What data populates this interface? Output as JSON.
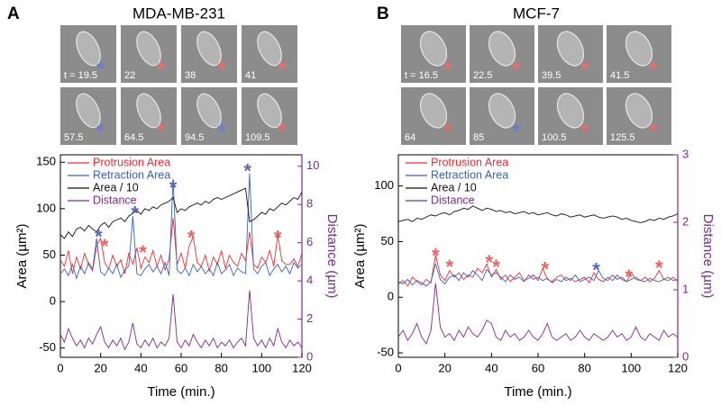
{
  "chart_data": [
    {
      "type": "line",
      "panel_label": "A",
      "title": "MDA-MB-231",
      "thumbnails": [
        {
          "label": "t = 19.5",
          "star": {
            "text": "*",
            "color": "#6c7ad0"
          }
        },
        {
          "label": "22",
          "star": {
            "text": "*",
            "color": "#f06a6a"
          }
        },
        {
          "label": "38",
          "star": {
            "text": "*",
            "color": "#f06a6a"
          }
        },
        {
          "label": "41",
          "star": {
            "text": "*",
            "color": "#f06a6a"
          }
        },
        {
          "label": "57.5",
          "star": {
            "text": "*",
            "color": "#6c7ad0"
          }
        },
        {
          "label": "64.5",
          "star": {
            "text": "*",
            "color": "#f06a6a"
          }
        },
        {
          "label": "94.5",
          "star": {
            "text": "*",
            "color": "#6c7ad0"
          }
        },
        {
          "label": "109.5",
          "star": {
            "text": "*",
            "color": "#f06a6a"
          }
        }
      ],
      "x": [
        0,
        2,
        4,
        6,
        8,
        10,
        12,
        14,
        16,
        18,
        20,
        22,
        24,
        26,
        28,
        30,
        32,
        34,
        36,
        38,
        40,
        42,
        44,
        46,
        48,
        50,
        52,
        54,
        56,
        58,
        60,
        62,
        64,
        66,
        68,
        70,
        72,
        74,
        76,
        78,
        80,
        82,
        84,
        86,
        88,
        90,
        92,
        94,
        96,
        98,
        100,
        102,
        104,
        106,
        108,
        110,
        112,
        114,
        116,
        118,
        120
      ],
      "series": [
        {
          "name": "Protrusion Area",
          "color": "#e8303a",
          "axis": "y",
          "values": [
            45,
            38,
            55,
            30,
            48,
            35,
            52,
            40,
            33,
            60,
            68,
            42,
            35,
            50,
            38,
            45,
            30,
            52,
            40,
            58,
            36,
            48,
            42,
            55,
            38,
            50,
            34,
            46,
            90,
            40,
            52,
            36,
            60,
            70,
            42,
            38,
            50,
            33,
            48,
            40,
            55,
            36,
            50,
            42,
            38,
            52,
            44,
            75,
            40,
            36,
            48,
            42,
            55,
            38,
            72,
            44,
            40,
            40,
            46,
            38,
            52
          ]
        },
        {
          "name": "Retraction Area",
          "color": "#3a62b4",
          "axis": "y",
          "values": [
            30,
            35,
            28,
            40,
            25,
            38,
            30,
            42,
            35,
            68,
            32,
            28,
            36,
            30,
            40,
            26,
            34,
            38,
            92,
            30,
            28,
            35,
            40,
            32,
            38,
            30,
            42,
            28,
            132,
            34,
            30,
            36,
            28,
            40,
            32,
            38,
            30,
            35,
            28,
            42,
            30,
            34,
            40,
            28,
            36,
            32,
            30,
            138,
            35,
            30,
            38,
            42,
            28,
            35,
            40,
            32,
            38,
            30,
            42,
            36,
            40
          ]
        },
        {
          "name": "Area / 10",
          "color": "#111111",
          "axis": "y",
          "values": [
            72,
            68,
            75,
            70,
            78,
            80,
            76,
            82,
            78,
            75,
            82,
            85,
            80,
            86,
            88,
            90,
            86,
            92,
            95,
            98,
            94,
            100,
            98,
            102,
            100,
            104,
            106,
            108,
            112,
            96,
            100,
            98,
            102,
            104,
            106,
            104,
            108,
            106,
            110,
            112,
            110,
            112,
            114,
            116,
            118,
            120,
            122,
            86,
            88,
            92,
            96,
            94,
            100,
            98,
            102,
            106,
            104,
            108,
            112,
            110,
            118
          ]
        },
        {
          "name": "Distance",
          "color": "#7d2a8c",
          "axis": "y2",
          "values": [
            1.2,
            0.8,
            1.5,
            1.0,
            0.6,
            0.9,
            0.5,
            1.0,
            0.7,
            1.2,
            1.6,
            0.8,
            0.5,
            0.9,
            0.6,
            1.0,
            0.4,
            0.8,
            1.8,
            0.7,
            0.5,
            0.9,
            0.6,
            1.0,
            0.5,
            0.8,
            0.6,
            1.0,
            3.3,
            0.8,
            0.5,
            0.9,
            0.6,
            1.2,
            0.8,
            0.5,
            0.9,
            0.6,
            1.0,
            0.5,
            0.8,
            0.6,
            0.9,
            0.5,
            0.8,
            1.0,
            0.6,
            3.5,
            1.0,
            0.6,
            0.9,
            0.5,
            1.0,
            0.6,
            1.5,
            0.8,
            0.5,
            0.9,
            0.6,
            0.8,
            0.5
          ]
        }
      ],
      "annotations": [
        {
          "text": "*",
          "x": 19,
          "y": 73,
          "color": "#5a66b8"
        },
        {
          "text": "*",
          "x": 22,
          "y": 63,
          "color": "#f06060"
        },
        {
          "text": "*",
          "x": 37,
          "y": 98,
          "color": "#5a66b8"
        },
        {
          "text": "*",
          "x": 41,
          "y": 56,
          "color": "#f06060"
        },
        {
          "text": "*",
          "x": 56,
          "y": 126,
          "color": "#5a66b8"
        },
        {
          "text": "*",
          "x": 65,
          "y": 72,
          "color": "#f06060"
        },
        {
          "text": "*",
          "x": 93,
          "y": 144,
          "color": "#5a66b8"
        },
        {
          "text": "*",
          "x": 108,
          "y": 72,
          "color": "#f06060"
        }
      ],
      "xlim": [
        0,
        120
      ],
      "xticks": [
        0,
        20,
        40,
        60,
        80,
        100,
        120
      ],
      "ylim": [
        -60,
        158
      ],
      "yticks": [
        -50,
        0,
        50,
        100,
        150
      ],
      "y2lim": [
        0,
        10.6
      ],
      "y2ticks": [
        0,
        2,
        4,
        6,
        8,
        10
      ],
      "xlabel": "Time (min.)",
      "ylabel": "Area (µm²)",
      "y2label": "Distance (µm)",
      "legend": "upper left"
    },
    {
      "type": "line",
      "panel_label": "B",
      "title": "MCF-7",
      "thumbnails": [
        {
          "label": "t = 16.5",
          "star": {
            "text": "*",
            "color": "#f06a6a"
          }
        },
        {
          "label": "22.5",
          "star": {
            "text": "*",
            "color": "#f06a6a"
          }
        },
        {
          "label": "39.5",
          "star": {
            "text": "*",
            "color": "#f06a6a"
          }
        },
        {
          "label": "41.5",
          "star": {
            "text": "*",
            "color": "#f06a6a"
          }
        },
        {
          "label": "64",
          "star": {
            "text": "*",
            "color": "#f06a6a"
          }
        },
        {
          "label": "85",
          "star": {
            "text": "*",
            "color": "#6c7ad0"
          }
        },
        {
          "label": "100.5",
          "star": {
            "text": "*",
            "color": "#f06a6a"
          }
        },
        {
          "label": "125.5",
          "star": {
            "text": "*",
            "color": "#f06a6a"
          }
        }
      ],
      "x": [
        0,
        2,
        4,
        6,
        8,
        10,
        12,
        14,
        16,
        18,
        20,
        22,
        24,
        26,
        28,
        30,
        32,
        34,
        36,
        38,
        40,
        42,
        44,
        46,
        48,
        50,
        52,
        54,
        56,
        58,
        60,
        62,
        64,
        66,
        68,
        70,
        72,
        74,
        76,
        78,
        80,
        82,
        84,
        86,
        88,
        90,
        92,
        94,
        96,
        98,
        100,
        102,
        104,
        106,
        108,
        110,
        112,
        114,
        116,
        118,
        120
      ],
      "series": [
        {
          "name": "Protrusion Area",
          "color": "#e8303a",
          "axis": "y",
          "values": [
            12,
            15,
            10,
            18,
            14,
            11,
            16,
            13,
            38,
            20,
            15,
            24,
            18,
            22,
            16,
            20,
            18,
            26,
            22,
            30,
            18,
            25,
            16,
            20,
            14,
            18,
            22,
            15,
            17,
            20,
            15,
            26,
            16,
            14,
            18,
            20,
            15,
            17,
            14,
            16,
            18,
            13,
            22,
            16,
            14,
            18,
            15,
            20,
            16,
            14,
            22,
            16,
            15,
            18,
            14,
            17,
            24,
            16,
            15,
            18,
            14
          ]
        },
        {
          "name": "Retraction Area",
          "color": "#3a62b4",
          "axis": "y",
          "values": [
            14,
            12,
            16,
            11,
            15,
            13,
            10,
            14,
            30,
            16,
            12,
            18,
            20,
            15,
            22,
            18,
            24,
            20,
            15,
            25,
            20,
            22,
            18,
            14,
            20,
            16,
            18,
            14,
            20,
            16,
            18,
            15,
            17,
            13,
            16,
            14,
            18,
            15,
            20,
            14,
            16,
            18,
            15,
            24,
            17,
            15,
            20,
            16,
            18,
            14,
            16,
            18,
            15,
            14,
            17,
            15,
            14,
            16,
            18,
            15,
            16
          ]
        },
        {
          "name": "Area / 10",
          "color": "#111111",
          "axis": "y",
          "values": [
            68,
            69,
            70,
            68,
            71,
            70,
            72,
            74,
            73,
            75,
            76,
            74,
            77,
            78,
            80,
            79,
            82,
            80,
            78,
            80,
            79,
            77,
            78,
            76,
            77,
            75,
            76,
            77,
            75,
            76,
            74,
            75,
            76,
            74,
            73,
            75,
            74,
            72,
            73,
            74,
            72,
            73,
            74,
            72,
            71,
            72,
            73,
            72,
            70,
            71,
            69,
            68,
            67,
            68,
            70,
            69,
            71,
            70,
            72,
            73,
            75
          ]
        },
        {
          "name": "Distance",
          "color": "#7d2a8c",
          "axis": "y2",
          "values": [
            0.3,
            0.4,
            0.25,
            0.35,
            0.5,
            0.3,
            0.2,
            0.4,
            1.1,
            0.45,
            0.3,
            0.35,
            0.25,
            0.4,
            0.3,
            0.45,
            0.35,
            0.3,
            0.4,
            0.55,
            0.5,
            0.3,
            0.25,
            0.4,
            0.3,
            0.35,
            0.25,
            0.3,
            0.4,
            0.3,
            0.25,
            0.35,
            0.5,
            0.3,
            0.25,
            0.3,
            0.35,
            0.25,
            0.3,
            0.4,
            0.3,
            0.25,
            0.35,
            0.3,
            0.25,
            0.3,
            0.4,
            0.3,
            0.35,
            0.25,
            0.3,
            0.45,
            0.3,
            0.25,
            0.35,
            0.3,
            0.25,
            0.4,
            0.3,
            0.35,
            0.3
          ]
        }
      ],
      "annotations": [
        {
          "text": "*",
          "x": 16,
          "y": 40,
          "color": "#f06060"
        },
        {
          "text": "*",
          "x": 22,
          "y": 30,
          "color": "#f06060"
        },
        {
          "text": "*",
          "x": 39,
          "y": 34,
          "color": "#f06060"
        },
        {
          "text": "*",
          "x": 42,
          "y": 30,
          "color": "#f06060"
        },
        {
          "text": "*",
          "x": 63,
          "y": 28,
          "color": "#f06060"
        },
        {
          "text": "*",
          "x": 85,
          "y": 27,
          "color": "#5a66b8"
        },
        {
          "text": "*",
          "x": 99,
          "y": 21,
          "color": "#f06060"
        },
        {
          "text": "*",
          "x": 112,
          "y": 29,
          "color": "#f06060"
        }
      ],
      "xlim": [
        0,
        120
      ],
      "xticks": [
        0,
        20,
        40,
        60,
        80,
        100,
        120
      ],
      "ylim": [
        -54,
        128
      ],
      "yticks": [
        -50,
        0,
        50,
        100
      ],
      "y2lim": [
        0,
        3
      ],
      "y2ticks": [
        0,
        1,
        2,
        3
      ],
      "xlabel": "Time (min.)",
      "ylabel": "Area (µm²)",
      "y2label": "Distance (µm)",
      "legend": "upper left"
    }
  ]
}
